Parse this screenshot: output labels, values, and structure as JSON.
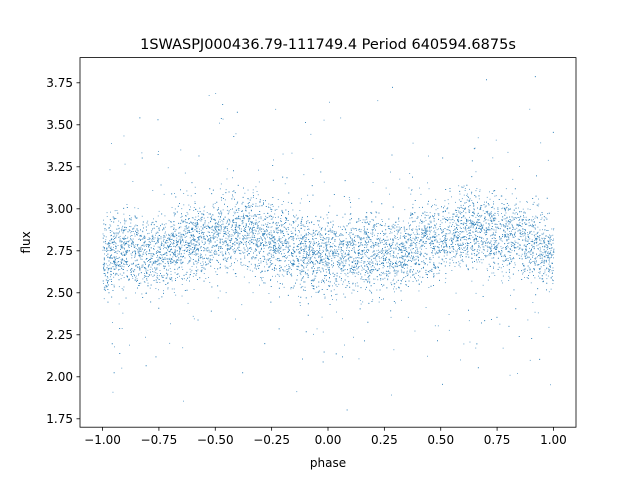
{
  "chart_data": {
    "type": "scatter",
    "title": "1SWASPJ000436.79-111749.4 Period 640594.6875s",
    "xlabel": "phase",
    "ylabel": "flux",
    "xlim": [
      -1.1,
      1.1
    ],
    "ylim": [
      1.7,
      3.9
    ],
    "x_ticks": [
      -1.0,
      -0.75,
      -0.5,
      -0.25,
      0.0,
      0.25,
      0.5,
      0.75,
      1.0
    ],
    "x_tick_labels": [
      "−1.00",
      "−0.75",
      "−0.50",
      "−0.25",
      "0.00",
      "0.25",
      "0.50",
      "0.75",
      "1.00"
    ],
    "y_ticks": [
      1.75,
      2.0,
      2.25,
      2.5,
      2.75,
      3.0,
      3.25,
      3.5,
      3.75
    ],
    "y_tick_labels": [
      "1.75",
      "2.00",
      "2.25",
      "2.50",
      "2.75",
      "3.00",
      "3.25",
      "3.50",
      "3.75"
    ],
    "marker_color": "#1f77b4",
    "legend": "none",
    "grid": false,
    "series": [
      {
        "x": [
          -1.0,
          -0.95,
          -0.9,
          -0.85,
          -0.8,
          -0.75,
          -0.7,
          -0.65,
          -0.6,
          -0.55,
          -0.5,
          -0.45,
          -0.4,
          -0.35,
          -0.3,
          -0.25,
          -0.2,
          -0.15,
          -0.1,
          -0.05,
          0.0,
          0.05,
          0.1,
          0.15,
          0.2,
          0.25,
          0.3,
          0.35,
          0.4,
          0.45,
          0.5,
          0.55,
          0.6,
          0.65,
          0.7,
          0.75,
          0.8,
          0.85,
          0.9,
          0.95,
          1.0
        ],
        "y": [
          2.72,
          2.74,
          2.76,
          2.75,
          2.74,
          2.73,
          2.76,
          2.78,
          2.8,
          2.82,
          2.84,
          2.86,
          2.87,
          2.86,
          2.84,
          2.82,
          2.8,
          2.77,
          2.75,
          2.73,
          2.72,
          2.73,
          2.74,
          2.75,
          2.74,
          2.73,
          2.75,
          2.77,
          2.79,
          2.81,
          2.83,
          2.85,
          2.87,
          2.88,
          2.87,
          2.86,
          2.84,
          2.82,
          2.8,
          2.77,
          2.74
        ]
      }
    ]
  }
}
